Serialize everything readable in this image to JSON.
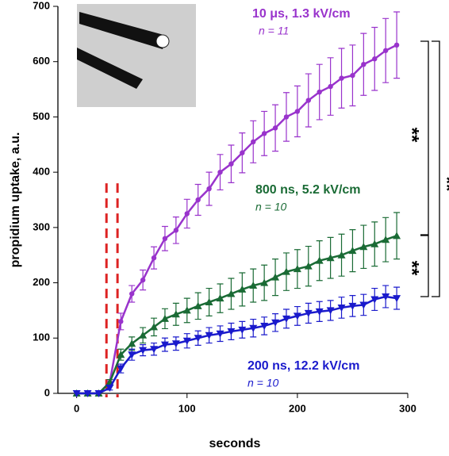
{
  "chart_data": {
    "type": "line",
    "xlabel": "seconds",
    "ylabel": "propidium uptake, a.u.",
    "x": [
      0,
      10,
      20,
      30,
      40,
      50,
      60,
      70,
      80,
      90,
      100,
      110,
      120,
      130,
      140,
      150,
      160,
      170,
      180,
      190,
      200,
      210,
      220,
      230,
      240,
      250,
      260,
      270,
      280,
      290
    ],
    "series": [
      {
        "name": "10 μs, 1.3 kV/cm",
        "note": "n = 11",
        "color": "#9933cc",
        "marker": "circle",
        "values": [
          0,
          0,
          0,
          20,
          130,
          180,
          205,
          245,
          280,
          295,
          325,
          350,
          370,
          400,
          415,
          435,
          455,
          470,
          480,
          500,
          510,
          530,
          545,
          555,
          570,
          575,
          595,
          605,
          620,
          630
        ],
        "errors": [
          0,
          0,
          0,
          5,
          15,
          15,
          18,
          20,
          22,
          24,
          26,
          28,
          30,
          32,
          34,
          36,
          38,
          40,
          42,
          44,
          46,
          48,
          50,
          52,
          54,
          55,
          56,
          57,
          58,
          60
        ]
      },
      {
        "name": "800 ns, 5.2 kV/cm",
        "note": "n = 10",
        "color": "#1a6b35",
        "marker": "triangle-up",
        "values": [
          0,
          0,
          0,
          20,
          70,
          90,
          105,
          120,
          135,
          143,
          150,
          158,
          165,
          172,
          180,
          188,
          195,
          200,
          210,
          220,
          225,
          230,
          240,
          245,
          250,
          258,
          265,
          270,
          278,
          285
        ],
        "errors": [
          0,
          0,
          0,
          5,
          10,
          12,
          14,
          16,
          18,
          20,
          22,
          24,
          25,
          26,
          28,
          30,
          30,
          32,
          33,
          34,
          35,
          36,
          36,
          37,
          38,
          38,
          39,
          40,
          40,
          42
        ]
      },
      {
        "name": "200 ns, 12.2 kV/cm",
        "note": "n = 10",
        "color": "#1a1acc",
        "marker": "triangle-down",
        "values": [
          0,
          0,
          0,
          10,
          45,
          70,
          78,
          80,
          88,
          90,
          95,
          100,
          105,
          108,
          112,
          115,
          118,
          122,
          128,
          135,
          140,
          145,
          148,
          150,
          155,
          158,
          160,
          170,
          175,
          172
        ],
        "errors": [
          0,
          0,
          0,
          4,
          8,
          10,
          10,
          11,
          12,
          12,
          13,
          13,
          14,
          14,
          15,
          15,
          16,
          16,
          16,
          17,
          17,
          18,
          18,
          18,
          19,
          19,
          19,
          20,
          20,
          20
        ]
      }
    ],
    "vlines": [
      27,
      37
    ],
    "vline_color": "#dd2222",
    "significance": [
      "**",
      "**",
      "**"
    ],
    "xlim": [
      -17,
      300
    ],
    "ylim": [
      0,
      700
    ],
    "xticks": [
      0,
      100,
      200,
      300
    ],
    "yticks": [
      0,
      100,
      200,
      300,
      400,
      500,
      600,
      700
    ]
  }
}
